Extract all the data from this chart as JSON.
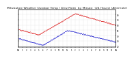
{
  "title": "Milwaukee Weather Outdoor Temp / Dew Point  by Minute  (24 Hours) (Alternate)",
  "title_fontsize": 3.5,
  "bg_color": "#ffffff",
  "plot_bg_color": "#ffffff",
  "temp_color": "#dd0000",
  "dew_color": "#0000cc",
  "grid_color": "#bbbbbb",
  "ylim": [
    18,
    90
  ],
  "xlim": [
    0,
    1440
  ],
  "x_tick_positions": [
    0,
    60,
    120,
    180,
    240,
    300,
    360,
    420,
    480,
    540,
    600,
    660,
    720,
    780,
    840,
    900,
    960,
    1020,
    1080,
    1140,
    1200,
    1260,
    1320,
    1380,
    1440
  ],
  "x_tick_labels": [
    "MN",
    "1",
    "2",
    "3",
    "4",
    "5",
    "6",
    "7",
    "8",
    "9",
    "10",
    "11",
    "N",
    "1",
    "2",
    "3",
    "4",
    "5",
    "6",
    "7",
    "8",
    "9",
    "10",
    "11",
    "MN"
  ],
  "y_tick_positions": [
    20,
    30,
    40,
    50,
    60,
    70,
    80
  ],
  "y_tick_labels": [
    "20",
    "30",
    "40",
    "50",
    "60",
    "70",
    "80"
  ]
}
